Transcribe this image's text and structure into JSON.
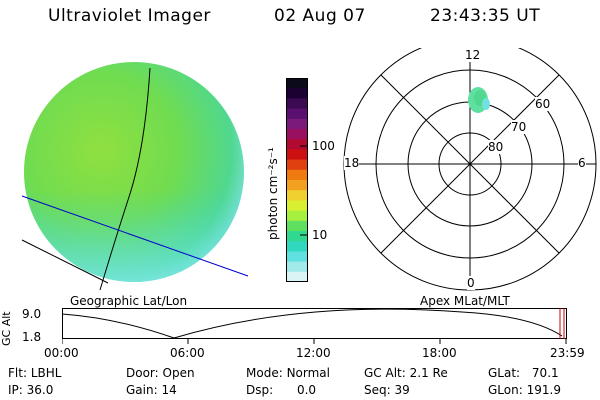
{
  "header": {
    "instrument": "Ultraviolet Imager",
    "date": "02 Aug 07",
    "time": "23:43:35 UT"
  },
  "colorbar": {
    "unit_label": "photon cm⁻²s⁻¹",
    "ticks": [
      "100",
      "10"
    ],
    "colors": [
      "#0a0a1a",
      "#1a0033",
      "#3b0a52",
      "#5a1070",
      "#7a1a7a",
      "#9a1060",
      "#b00a30",
      "#cc1010",
      "#e04010",
      "#ee7a10",
      "#f2a020",
      "#f0d030",
      "#d8f030",
      "#a8f040",
      "#60e060",
      "#30d890",
      "#30d8c0",
      "#60e0e0",
      "#a0eaea",
      "#d8f4f4"
    ]
  },
  "polar": {
    "mlt_labels": [
      "12",
      "18",
      "6",
      "0"
    ],
    "lat_labels": [
      "60",
      "70",
      "80"
    ]
  },
  "timeline": {
    "left_label": "Geographic Lat/Lon",
    "right_label": "Apex MLat/MLT",
    "ylabel": "GC Alt",
    "yticks": [
      "9.0",
      "1.8"
    ],
    "xticks": [
      "00:00",
      "06:00",
      "12:00",
      "18:00",
      "23:59"
    ]
  },
  "info": {
    "row1": [
      {
        "label": "Flt:",
        "value": "LBHL"
      },
      {
        "label": "Door:",
        "value": "Open"
      },
      {
        "label": "Mode:",
        "value": "Normal"
      },
      {
        "label": "GC Alt:",
        "value": "2.1 Re"
      },
      {
        "label": "GLat:",
        "value": "70.1"
      }
    ],
    "row2": [
      {
        "label": "IP:",
        "value": "36.0"
      },
      {
        "label": "Gain:",
        "value": "14"
      },
      {
        "label": "Dsp:",
        "value": "0.0"
      },
      {
        "label": "Seq:",
        "value": "39"
      },
      {
        "label": "GLon:",
        "value": "191.9"
      }
    ]
  }
}
